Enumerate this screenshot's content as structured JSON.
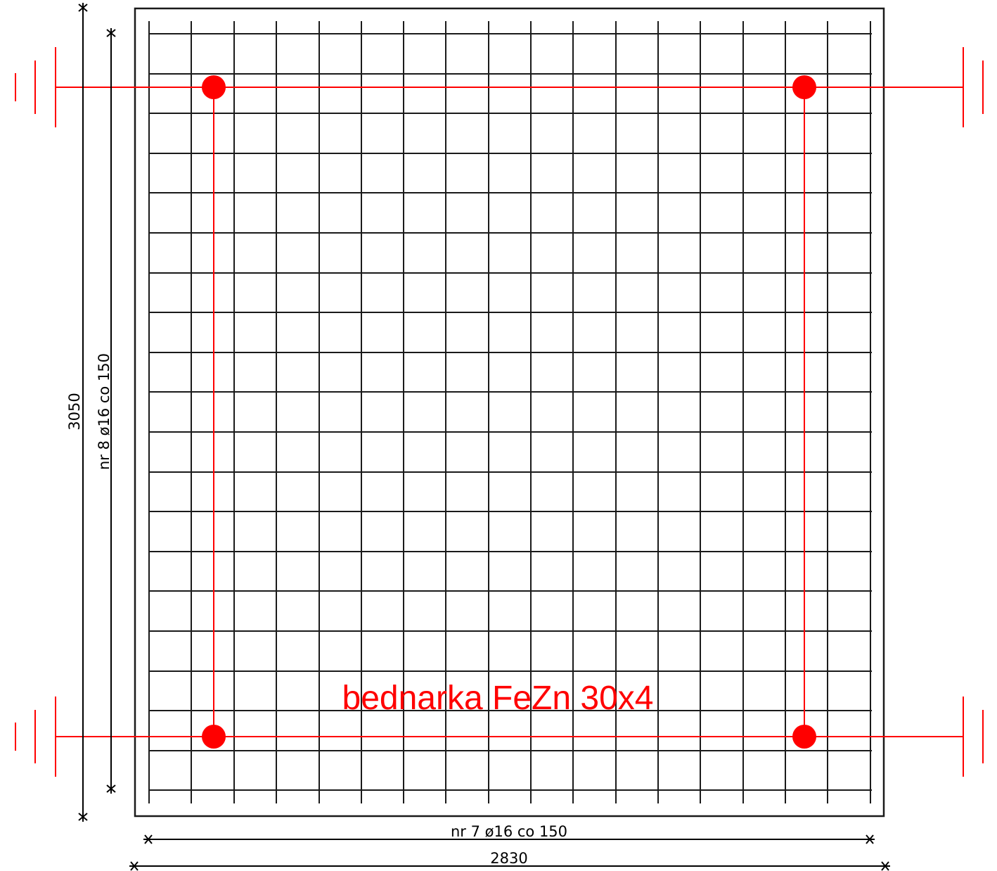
{
  "drawing": {
    "label_flat_bar": "bednarka FeZn 30x4",
    "dim_height": "3050",
    "dim_width": "2830",
    "rebar_vertical": "nr 8 ø16 co 150",
    "rebar_horizontal": "nr 7 ø16 co 150"
  },
  "colors": {
    "mesh": "#1a1a1a",
    "outline": "#1a1a1a",
    "grounding": "#ff0000",
    "dimension": "#000000"
  },
  "icons": {
    "grounding": "earth-ground-icon",
    "junction": "junction-dot-icon"
  }
}
